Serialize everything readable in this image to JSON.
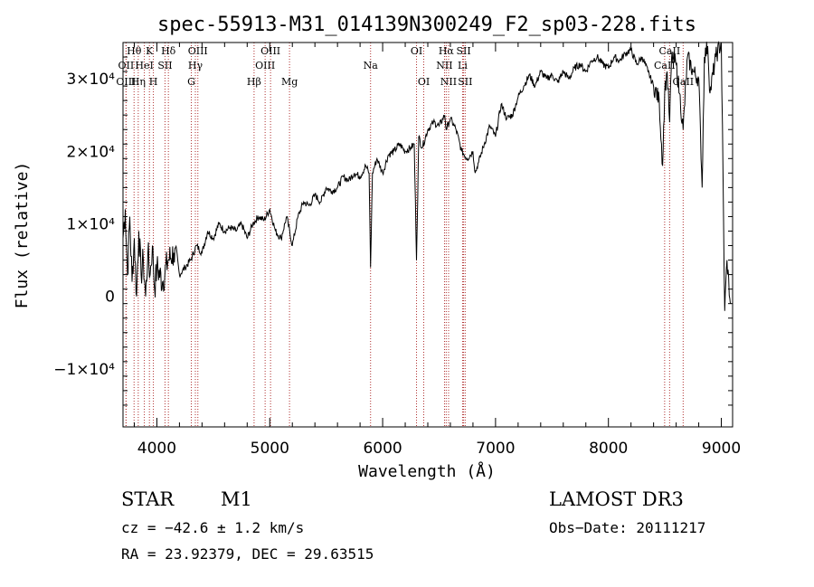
{
  "chart_data": {
    "type": "line",
    "title": "spec-55913-M31_014139N300249_F2_sp03-228.fits",
    "xlabel": "Wavelength (Å)",
    "ylabel": "Flux (relative)",
    "xlim": [
      3700,
      9100
    ],
    "ylim": [
      -18000,
      35000
    ],
    "xticks": [
      4000,
      5000,
      6000,
      7000,
      8000,
      9000
    ],
    "xtick_labels": [
      "4000",
      "5000",
      "6000",
      "7000",
      "8000",
      "9000"
    ],
    "yticks": [
      -10000,
      0,
      10000,
      20000,
      30000
    ],
    "ytick_labels": [
      "−1×10⁴",
      "0",
      "1×10⁴",
      "2×10⁴",
      "3×10⁴"
    ],
    "spectral_lines": [
      {
        "label": "Hθ",
        "x": 3798,
        "row": 0
      },
      {
        "label": "OII",
        "x": 3727,
        "row": 1
      },
      {
        "label": "OIII",
        "x": 3727,
        "row": 2
      },
      {
        "label": "Hη",
        "x": 3835,
        "row": 2
      },
      {
        "label": "HeI",
        "x": 3889,
        "row": 1
      },
      {
        "label": "K",
        "x": 3934,
        "row": 0
      },
      {
        "label": "H",
        "x": 3969,
        "row": 2
      },
      {
        "label": "SII",
        "x": 4072,
        "row": 1
      },
      {
        "label": "Hδ",
        "x": 4102,
        "row": 0
      },
      {
        "label": "OIII",
        "x": 4363,
        "row": 0
      },
      {
        "label": "Hγ",
        "x": 4341,
        "row": 1
      },
      {
        "label": "G",
        "x": 4305,
        "row": 2
      },
      {
        "label": "Hβ",
        "x": 4861,
        "row": 2
      },
      {
        "label": "OIII",
        "x": 5007,
        "row": 0
      },
      {
        "label": "OIII",
        "x": 4959,
        "row": 1
      },
      {
        "label": "Mg",
        "x": 5175,
        "row": 2
      },
      {
        "label": "Na",
        "x": 5893,
        "row": 1
      },
      {
        "label": "OI",
        "x": 6300,
        "row": 0
      },
      {
        "label": "OI",
        "x": 6364,
        "row": 2
      },
      {
        "label": "Hα",
        "x": 6563,
        "row": 0
      },
      {
        "label": "NII",
        "x": 6548,
        "row": 1
      },
      {
        "label": "NII",
        "x": 6584,
        "row": 2
      },
      {
        "label": "SII",
        "x": 6717,
        "row": 0
      },
      {
        "label": "Li",
        "x": 6708,
        "row": 1
      },
      {
        "label": "SII",
        "x": 6731,
        "row": 2
      },
      {
        "label": "CaII",
        "x": 8542,
        "row": 0
      },
      {
        "label": "CaII",
        "x": 8498,
        "row": 1
      },
      {
        "label": "CaII",
        "x": 8662,
        "row": 2
      }
    ],
    "spectrum": {
      "name": "flux",
      "x": [
        3700,
        3720,
        3740,
        3760,
        3780,
        3800,
        3820,
        3840,
        3860,
        3880,
        3900,
        3920,
        3940,
        3960,
        3980,
        4000,
        4050,
        4100,
        4150,
        4200,
        4250,
        4300,
        4350,
        4400,
        4450,
        4500,
        4550,
        4600,
        4650,
        4700,
        4750,
        4800,
        4850,
        4900,
        4950,
        5000,
        5050,
        5100,
        5150,
        5200,
        5250,
        5300,
        5350,
        5400,
        5450,
        5500,
        5550,
        5600,
        5650,
        5700,
        5750,
        5800,
        5850,
        5880,
        5893,
        5910,
        5950,
        6000,
        6050,
        6100,
        6150,
        6200,
        6250,
        6280,
        6300,
        6320,
        6350,
        6400,
        6450,
        6500,
        6550,
        6563,
        6600,
        6650,
        6700,
        6750,
        6800,
        6820,
        6850,
        6900,
        6950,
        7000,
        7050,
        7100,
        7150,
        7200,
        7250,
        7300,
        7350,
        7400,
        7450,
        7500,
        7550,
        7600,
        7650,
        7700,
        7750,
        7800,
        7850,
        7900,
        7950,
        8000,
        8050,
        8100,
        8150,
        8200,
        8250,
        8300,
        8350,
        8400,
        8450,
        8480,
        8498,
        8520,
        8542,
        8560,
        8600,
        8630,
        8662,
        8700,
        8750,
        8800,
        8830,
        8850,
        8880,
        8900,
        8950,
        9000,
        9030,
        9050,
        9080
      ],
      "y": [
        8000,
        12000,
        3000,
        11000,
        2000,
        8000,
        0,
        9000,
        3000,
        5000,
        0,
        6000,
        3000,
        7000,
        1000,
        4000,
        2000,
        5000,
        6000,
        3000,
        4000,
        5000,
        7000,
        6000,
        9000,
        8000,
        10000,
        9000,
        9500,
        9000,
        10000,
        8000,
        10000,
        11000,
        10500,
        12000,
        9000,
        8000,
        11000,
        7000,
        11000,
        13000,
        12500,
        14000,
        13000,
        15000,
        14500,
        15000,
        16500,
        16000,
        17000,
        16500,
        18000,
        17000,
        4000,
        17000,
        19000,
        17000,
        19500,
        20000,
        21000,
        20000,
        20500,
        21000,
        5000,
        22000,
        20500,
        23000,
        24000,
        23500,
        25000,
        23000,
        24500,
        23000,
        20000,
        19000,
        20000,
        17000,
        18500,
        21000,
        23500,
        22000,
        26500,
        24500,
        25000,
        27500,
        29000,
        30500,
        29000,
        31000,
        30000,
        30500,
        29500,
        31000,
        30000,
        31500,
        32000,
        31000,
        32500,
        33000,
        32000,
        31500,
        33000,
        32500,
        33500,
        34000,
        32000,
        33000,
        31000,
        29000,
        27000,
        18000,
        28000,
        31000,
        24000,
        33000,
        32000,
        28000,
        23000,
        33000,
        31000,
        30000,
        15000,
        33000,
        34500,
        28000,
        33000,
        35000,
        -2000,
        5000,
        -1000
      ]
    },
    "info": {
      "star": "STAR",
      "class": "M1",
      "survey": "LAMOST DR3",
      "cz": "cz = −42.6 ± 1.2 km/s",
      "obs_date": "Obs−Date: 20111217",
      "coords": "RA =  23.92379, DEC =  29.63515"
    }
  }
}
